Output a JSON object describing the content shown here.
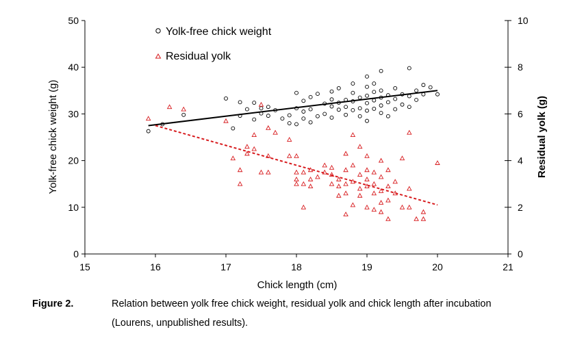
{
  "chart_data": {
    "type": "scatter",
    "x_label": "Chick length (cm)",
    "y_label_left": "Yolk-free chick weight (g)",
    "y_label_right": "Residual yolk (g)",
    "xlim": [
      15,
      21
    ],
    "x_ticks": [
      15,
      16,
      17,
      18,
      19,
      20,
      21
    ],
    "ylim_left": [
      0,
      50
    ],
    "y_ticks_left": [
      0,
      10,
      20,
      30,
      40,
      50
    ],
    "ylim_right": [
      0,
      10
    ],
    "y_ticks_right": [
      0,
      2,
      4,
      6,
      8,
      10
    ],
    "legend_position": "top-left",
    "series": [
      {
        "name": "Yolk-free chick weight",
        "axis": "left",
        "marker": "circle",
        "color": "#000000",
        "trendline": {
          "x": [
            15.9,
            20.0
          ],
          "y": [
            27.5,
            35.0
          ],
          "style": "solid"
        },
        "points": [
          [
            15.9,
            26.3
          ],
          [
            16.1,
            27.8
          ],
          [
            16.4,
            29.8
          ],
          [
            17.0,
            33.3
          ],
          [
            17.1,
            26.9
          ],
          [
            17.2,
            29.6
          ],
          [
            17.2,
            32.5
          ],
          [
            17.3,
            31.0
          ],
          [
            17.4,
            28.8
          ],
          [
            17.4,
            32.4
          ],
          [
            17.5,
            30.1
          ],
          [
            17.5,
            31.2
          ],
          [
            17.6,
            29.6
          ],
          [
            17.6,
            31.5
          ],
          [
            17.7,
            30.8
          ],
          [
            17.8,
            29.0
          ],
          [
            17.9,
            29.7
          ],
          [
            17.9,
            28.0
          ],
          [
            18.0,
            31.2
          ],
          [
            18.0,
            34.5
          ],
          [
            18.0,
            27.8
          ],
          [
            18.1,
            32.8
          ],
          [
            18.1,
            30.5
          ],
          [
            18.1,
            29.0
          ],
          [
            18.2,
            33.6
          ],
          [
            18.2,
            31.0
          ],
          [
            18.2,
            28.2
          ],
          [
            18.3,
            29.5
          ],
          [
            18.3,
            34.3
          ],
          [
            18.4,
            32.2
          ],
          [
            18.4,
            30.0
          ],
          [
            18.5,
            33.1
          ],
          [
            18.5,
            31.6
          ],
          [
            18.5,
            29.2
          ],
          [
            18.5,
            34.8
          ],
          [
            18.6,
            32.4
          ],
          [
            18.6,
            30.9
          ],
          [
            18.6,
            35.5
          ],
          [
            18.7,
            33.0
          ],
          [
            18.7,
            31.5
          ],
          [
            18.7,
            29.8
          ],
          [
            18.8,
            34.5
          ],
          [
            18.8,
            32.7
          ],
          [
            18.8,
            30.8
          ],
          [
            18.8,
            36.5
          ],
          [
            18.9,
            33.5
          ],
          [
            18.9,
            31.2
          ],
          [
            18.9,
            29.5
          ],
          [
            19.0,
            35.8
          ],
          [
            19.0,
            33.9
          ],
          [
            19.0,
            32.3
          ],
          [
            19.0,
            30.7
          ],
          [
            19.0,
            38.0
          ],
          [
            19.0,
            28.5
          ],
          [
            19.1,
            34.7
          ],
          [
            19.1,
            32.9
          ],
          [
            19.1,
            31.1
          ],
          [
            19.1,
            36.5
          ],
          [
            19.2,
            33.5
          ],
          [
            19.2,
            31.8
          ],
          [
            19.2,
            39.2
          ],
          [
            19.2,
            30.2
          ],
          [
            19.2,
            35.0
          ],
          [
            19.3,
            32.5
          ],
          [
            19.3,
            34.0
          ],
          [
            19.3,
            29.5
          ],
          [
            19.4,
            33.2
          ],
          [
            19.4,
            35.5
          ],
          [
            19.4,
            31.0
          ],
          [
            19.5,
            34.2
          ],
          [
            19.5,
            32.0
          ],
          [
            19.6,
            39.8
          ],
          [
            19.6,
            33.8
          ],
          [
            19.6,
            31.5
          ],
          [
            19.7,
            35.0
          ],
          [
            19.7,
            33.0
          ],
          [
            19.8,
            36.2
          ],
          [
            19.8,
            34.2
          ],
          [
            19.9,
            35.7
          ],
          [
            20.0,
            34.2
          ]
        ]
      },
      {
        "name": "Residual yolk",
        "axis": "right",
        "marker": "triangle",
        "color": "#d7191c",
        "trendline": {
          "x": [
            16.0,
            20.0
          ],
          "y": [
            5.5,
            2.1
          ],
          "style": "dashed"
        },
        "points": [
          [
            15.9,
            5.8
          ],
          [
            16.2,
            6.3
          ],
          [
            16.4,
            6.2
          ],
          [
            17.0,
            5.7
          ],
          [
            17.1,
            4.1
          ],
          [
            17.2,
            3.6
          ],
          [
            17.2,
            3.0
          ],
          [
            17.3,
            4.3
          ],
          [
            17.3,
            4.6
          ],
          [
            17.4,
            5.1
          ],
          [
            17.4,
            4.5
          ],
          [
            17.5,
            6.4
          ],
          [
            17.5,
            3.5
          ],
          [
            17.6,
            5.4
          ],
          [
            17.6,
            3.5
          ],
          [
            17.6,
            4.2
          ],
          [
            17.7,
            5.2
          ],
          [
            17.9,
            4.9
          ],
          [
            17.9,
            4.2
          ],
          [
            18.0,
            3.5
          ],
          [
            18.0,
            3.2
          ],
          [
            18.0,
            3.0
          ],
          [
            18.0,
            4.2
          ],
          [
            18.1,
            3.5
          ],
          [
            18.1,
            3.0
          ],
          [
            18.1,
            2.0
          ],
          [
            18.2,
            3.6
          ],
          [
            18.2,
            3.2
          ],
          [
            18.2,
            2.9
          ],
          [
            18.3,
            3.3
          ],
          [
            18.4,
            3.5
          ],
          [
            18.4,
            3.8
          ],
          [
            18.5,
            3.0
          ],
          [
            18.5,
            3.4
          ],
          [
            18.5,
            3.7
          ],
          [
            18.6,
            2.9
          ],
          [
            18.6,
            3.2
          ],
          [
            18.6,
            2.5
          ],
          [
            18.7,
            3.6
          ],
          [
            18.7,
            4.3
          ],
          [
            18.7,
            2.6
          ],
          [
            18.7,
            1.7
          ],
          [
            18.7,
            3.0
          ],
          [
            18.8,
            5.1
          ],
          [
            18.8,
            3.8
          ],
          [
            18.8,
            3.1
          ],
          [
            18.8,
            2.1
          ],
          [
            18.9,
            4.6
          ],
          [
            18.9,
            3.4
          ],
          [
            18.9,
            2.8
          ],
          [
            18.9,
            2.5
          ],
          [
            19.0,
            4.2
          ],
          [
            19.0,
            3.6
          ],
          [
            19.0,
            3.2
          ],
          [
            19.0,
            2.9
          ],
          [
            19.0,
            2.0
          ],
          [
            19.1,
            3.5
          ],
          [
            19.1,
            3.0
          ],
          [
            19.1,
            2.6
          ],
          [
            19.1,
            1.9
          ],
          [
            19.2,
            4.0
          ],
          [
            19.2,
            3.3
          ],
          [
            19.2,
            2.7
          ],
          [
            19.2,
            2.2
          ],
          [
            19.2,
            1.8
          ],
          [
            19.3,
            3.6
          ],
          [
            19.3,
            2.9
          ],
          [
            19.3,
            2.3
          ],
          [
            19.3,
            1.5
          ],
          [
            19.4,
            3.1
          ],
          [
            19.4,
            2.6
          ],
          [
            19.5,
            4.1
          ],
          [
            19.5,
            2.0
          ],
          [
            19.6,
            5.2
          ],
          [
            19.6,
            2.8
          ],
          [
            19.6,
            2.0
          ],
          [
            19.7,
            1.5
          ],
          [
            19.8,
            1.5
          ],
          [
            19.8,
            1.8
          ],
          [
            20.0,
            3.9
          ]
        ]
      }
    ]
  },
  "caption": {
    "label": "Figure 2.",
    "line1": "Relation between yolk free chick weight, residual yolk and chick length after incubation",
    "line2": "(Lourens, unpublished results)."
  }
}
